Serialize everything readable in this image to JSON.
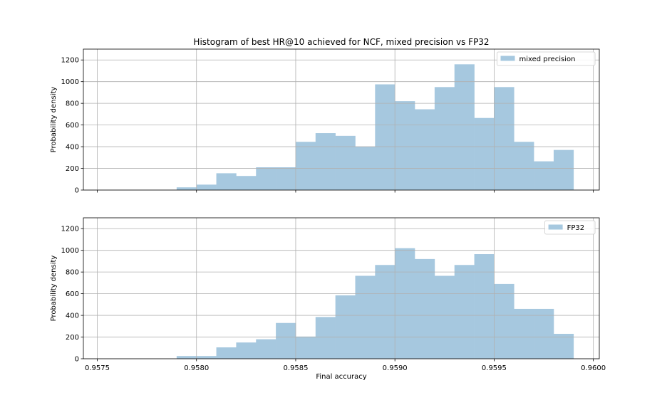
{
  "chart_data": {
    "type": "bar",
    "title": "Histogram of best HR@10 achieved for NCF, mixed precision vs FP32",
    "xlabel": "Final accuracy",
    "xlim": [
      0.95743,
      0.96003
    ],
    "x_ticks": [
      "0.9575",
      "0.9580",
      "0.9585",
      "0.9590",
      "0.9595",
      "0.9600"
    ],
    "x_tick_values": [
      0.9575,
      0.958,
      0.9585,
      0.959,
      0.9595,
      0.96
    ],
    "grid": true,
    "bin_edges": [
      0.9579,
      0.958,
      0.9581,
      0.9582,
      0.9583,
      0.9584,
      0.9585,
      0.9586,
      0.9587,
      0.9588,
      0.9589,
      0.959,
      0.9591,
      0.9592,
      0.9593,
      0.9594,
      0.9595,
      0.9596,
      0.9597,
      0.9598,
      0.9599
    ],
    "panels": [
      {
        "ylabel": "Probability density",
        "ylim": [
          0,
          1300
        ],
        "y_ticks": [
          "0",
          "200",
          "400",
          "600",
          "800",
          "1000",
          "1200"
        ],
        "y_tick_values": [
          0,
          200,
          400,
          600,
          800,
          1000,
          1200
        ],
        "legend_position": "top-right",
        "show_x_tick_labels": false,
        "series": [
          {
            "name": "mixed precision",
            "color": "#a6c8df",
            "values": [
              25,
              50,
              155,
              130,
              210,
              210,
              445,
              525,
              500,
              400,
              975,
              820,
              745,
              950,
              1160,
              665,
              950,
              445,
              265,
              370
            ]
          }
        ]
      },
      {
        "ylabel": "Probability density",
        "ylim": [
          0,
          1300
        ],
        "y_ticks": [
          "0",
          "200",
          "400",
          "600",
          "800",
          "1000",
          "1200"
        ],
        "y_tick_values": [
          0,
          200,
          400,
          600,
          800,
          1000,
          1200
        ],
        "legend_position": "top-right",
        "show_x_tick_labels": true,
        "series": [
          {
            "name": "FP32",
            "color": "#a6c8df",
            "values": [
              25,
              25,
              105,
              150,
              180,
              330,
              205,
              385,
              585,
              765,
              865,
              1020,
              920,
              765,
              865,
              965,
              690,
              460,
              460,
              230
            ]
          }
        ]
      }
    ]
  }
}
